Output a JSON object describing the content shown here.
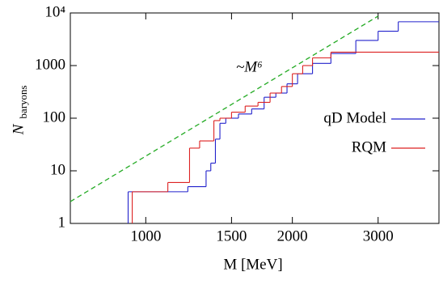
{
  "chart_data": {
    "type": "step-line",
    "x_label": "M [MeV]",
    "y_label": "N",
    "y_label_subscript": "baryons",
    "annotation": "~M⁶",
    "annotation_color": "#22aa22",
    "x_log": true,
    "y_log": true,
    "xlim": [
      700,
      4000
    ],
    "ylim": [
      1,
      10000
    ],
    "xticks": [
      1000,
      1500,
      2000,
      3000
    ],
    "yticks": [
      1,
      10,
      100,
      1000,
      {
        "value": 10000,
        "label": "10⁴"
      }
    ],
    "legend": "right",
    "series": [
      {
        "name": "qD Model",
        "color": "#2222cc",
        "x": [
          920,
          920,
          1220,
          1330,
          1360,
          1390,
          1420,
          1460,
          1550,
          1650,
          1750,
          1850,
          1950,
          2050,
          2200,
          2400,
          2700,
          3000,
          3300,
          4000
        ],
        "values": [
          1,
          4,
          5,
          10,
          14,
          40,
          80,
          100,
          120,
          150,
          250,
          300,
          450,
          700,
          1100,
          1700,
          3000,
          4500,
          6800,
          6800
        ]
      },
      {
        "name": "RQM",
        "color": "#dd2222",
        "x": [
          938,
          938,
          1110,
          1230,
          1290,
          1380,
          1420,
          1500,
          1600,
          1700,
          1800,
          1900,
          2000,
          2100,
          2200,
          2400,
          4000
        ],
        "values": [
          1,
          4,
          6,
          27,
          37,
          90,
          100,
          130,
          170,
          200,
          300,
          400,
          700,
          1000,
          1400,
          1800,
          1800
        ]
      }
    ],
    "trend": {
      "x": [
        700,
        3000
      ],
      "values": [
        2.6,
        8700
      ]
    }
  }
}
